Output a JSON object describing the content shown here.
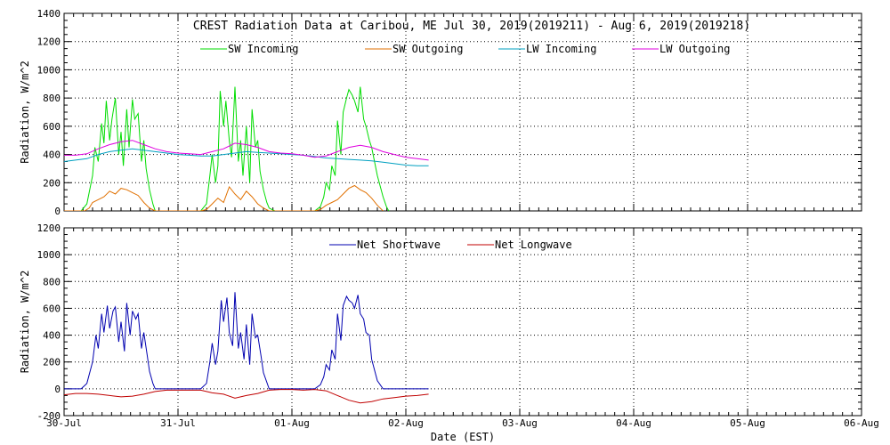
{
  "chart_data": [
    {
      "type": "line",
      "title": "CREST Radiation Data at Caribou, ME   Jul 30, 2019(2019211) - Aug  6, 2019(2019218)",
      "xlabel": "",
      "ylabel": "Radiation, W/m^2",
      "ylim": [
        0,
        1400
      ],
      "yticks": [
        0,
        200,
        400,
        600,
        800,
        1000,
        1200,
        1400
      ],
      "x_unit": "days since 30-Jul 00:00 EST",
      "xlim": [
        0,
        7
      ],
      "grid": true,
      "legend_position": "top",
      "series": [
        {
          "name": "SW Incoming",
          "color": "#00dd00",
          "x": [
            0,
            0.15,
            0.2,
            0.25,
            0.27,
            0.3,
            0.33,
            0.35,
            0.37,
            0.4,
            0.42,
            0.45,
            0.48,
            0.5,
            0.52,
            0.55,
            0.57,
            0.6,
            0.62,
            0.65,
            0.68,
            0.7,
            0.72,
            0.75,
            0.78,
            0.8,
            0.85,
            1.0,
            1.2,
            1.25,
            1.28,
            1.3,
            1.33,
            1.35,
            1.37,
            1.4,
            1.42,
            1.45,
            1.47,
            1.5,
            1.53,
            1.55,
            1.57,
            1.6,
            1.63,
            1.65,
            1.68,
            1.7,
            1.72,
            1.75,
            1.78,
            1.8,
            1.85,
            2.0,
            2.2,
            2.25,
            2.28,
            2.3,
            2.33,
            2.35,
            2.38,
            2.4,
            2.43,
            2.45,
            2.48,
            2.5,
            2.53,
            2.55,
            2.58,
            2.6,
            2.63,
            2.65,
            2.68,
            2.7,
            2.75,
            2.8,
            2.83,
            2.85
          ],
          "values": [
            0,
            0,
            50,
            250,
            450,
            350,
            620,
            480,
            780,
            500,
            650,
            800,
            400,
            560,
            320,
            720,
            450,
            790,
            650,
            690,
            350,
            500,
            300,
            150,
            50,
            0,
            0,
            0,
            0,
            50,
            250,
            400,
            200,
            320,
            850,
            600,
            780,
            500,
            380,
            880,
            350,
            500,
            250,
            600,
            200,
            720,
            450,
            500,
            280,
            150,
            60,
            20,
            0,
            0,
            0,
            30,
            100,
            200,
            150,
            320,
            250,
            640,
            400,
            700,
            800,
            860,
            820,
            780,
            700,
            880,
            650,
            600,
            500,
            450,
            250,
            100,
            30,
            0
          ]
        },
        {
          "name": "SW Outgoing",
          "color": "#e07000",
          "x": [
            0,
            0.18,
            0.22,
            0.25,
            0.3,
            0.35,
            0.4,
            0.45,
            0.5,
            0.55,
            0.6,
            0.65,
            0.7,
            0.75,
            0.8,
            1.2,
            1.25,
            1.3,
            1.35,
            1.4,
            1.45,
            1.5,
            1.55,
            1.6,
            1.65,
            1.7,
            1.75,
            1.8,
            2.2,
            2.25,
            2.3,
            2.35,
            2.4,
            2.45,
            2.5,
            2.55,
            2.6,
            2.65,
            2.7,
            2.75,
            2.8
          ],
          "values": [
            0,
            0,
            20,
            60,
            80,
            100,
            140,
            120,
            160,
            150,
            130,
            110,
            60,
            20,
            0,
            0,
            10,
            50,
            90,
            60,
            170,
            120,
            80,
            140,
            100,
            50,
            20,
            0,
            0,
            10,
            40,
            60,
            80,
            120,
            160,
            180,
            150,
            130,
            90,
            40,
            0
          ]
        },
        {
          "name": "LW Incoming",
          "color": "#00a0c0",
          "x": [
            0,
            0.1,
            0.2,
            0.3,
            0.4,
            0.5,
            0.6,
            0.7,
            0.8,
            0.9,
            1.0,
            1.1,
            1.2,
            1.3,
            1.4,
            1.5,
            1.6,
            1.7,
            1.8,
            1.9,
            2.0,
            2.1,
            2.2,
            2.3,
            2.4,
            2.5,
            2.6,
            2.7,
            2.8,
            2.9,
            3.0,
            3.1,
            3.2
          ],
          "values": [
            350,
            360,
            370,
            400,
            420,
            430,
            440,
            430,
            420,
            410,
            400,
            395,
            390,
            390,
            400,
            410,
            420,
            415,
            410,
            405,
            400,
            395,
            385,
            375,
            370,
            365,
            360,
            355,
            345,
            335,
            325,
            320,
            320
          ]
        },
        {
          "name": "LW Outgoing",
          "color": "#e000e0",
          "x": [
            0,
            0.1,
            0.2,
            0.3,
            0.4,
            0.5,
            0.6,
            0.7,
            0.8,
            0.9,
            1.0,
            1.1,
            1.2,
            1.3,
            1.4,
            1.5,
            1.6,
            1.7,
            1.8,
            1.9,
            2.0,
            2.1,
            2.2,
            2.3,
            2.4,
            2.5,
            2.6,
            2.7,
            2.8,
            2.9,
            3.0,
            3.1,
            3.2
          ],
          "values": [
            395,
            395,
            405,
            440,
            470,
            490,
            500,
            470,
            440,
            420,
            410,
            405,
            400,
            420,
            440,
            480,
            470,
            450,
            420,
            410,
            405,
            395,
            380,
            390,
            420,
            450,
            465,
            450,
            420,
            400,
            380,
            370,
            360
          ]
        }
      ]
    },
    {
      "type": "line",
      "title": "",
      "xlabel": "Date (EST)",
      "ylabel": "Radiation, W/m^2",
      "ylim": [
        -200,
        1200
      ],
      "yticks": [
        -200,
        0,
        200,
        400,
        600,
        800,
        1000,
        1200
      ],
      "x_unit": "days since 30-Jul 00:00 EST",
      "xlim": [
        0,
        7
      ],
      "xtick_labels": [
        "30-Jul",
        "31-Jul",
        "01-Aug",
        "02-Aug",
        "03-Aug",
        "04-Aug",
        "05-Aug",
        "06-Aug"
      ],
      "grid": true,
      "legend_position": "top",
      "series": [
        {
          "name": "Net Shortwave",
          "color": "#0000b0",
          "x": [
            0,
            0.15,
            0.2,
            0.25,
            0.28,
            0.3,
            0.33,
            0.35,
            0.38,
            0.4,
            0.43,
            0.45,
            0.48,
            0.5,
            0.53,
            0.55,
            0.58,
            0.6,
            0.63,
            0.65,
            0.68,
            0.7,
            0.73,
            0.75,
            0.78,
            0.8,
            1.0,
            1.2,
            1.25,
            1.28,
            1.3,
            1.33,
            1.35,
            1.38,
            1.4,
            1.43,
            1.45,
            1.48,
            1.5,
            1.53,
            1.55,
            1.58,
            1.6,
            1.63,
            1.65,
            1.68,
            1.7,
            1.73,
            1.75,
            1.8,
            2.0,
            2.2,
            2.25,
            2.28,
            2.3,
            2.33,
            2.35,
            2.38,
            2.4,
            2.43,
            2.45,
            2.48,
            2.5,
            2.53,
            2.55,
            2.58,
            2.6,
            2.63,
            2.65,
            2.68,
            2.7,
            2.75,
            2.8,
            3.0,
            3.2
          ],
          "values": [
            0,
            0,
            40,
            200,
            400,
            300,
            560,
            420,
            620,
            450,
            580,
            610,
            350,
            500,
            280,
            640,
            400,
            580,
            520,
            560,
            300,
            420,
            250,
            130,
            40,
            0,
            0,
            0,
            40,
            200,
            340,
            180,
            280,
            660,
            500,
            680,
            420,
            320,
            720,
            300,
            420,
            220,
            480,
            180,
            560,
            380,
            400,
            240,
            120,
            0,
            0,
            0,
            30,
            90,
            180,
            140,
            290,
            220,
            560,
            360,
            620,
            690,
            660,
            640,
            600,
            700,
            560,
            520,
            420,
            400,
            220,
            60,
            0,
            0,
            0
          ]
        },
        {
          "name": "Net Longwave",
          "color": "#c00000",
          "x": [
            0,
            0.1,
            0.2,
            0.3,
            0.4,
            0.5,
            0.6,
            0.7,
            0.8,
            0.9,
            1.0,
            1.1,
            1.2,
            1.3,
            1.4,
            1.5,
            1.6,
            1.7,
            1.8,
            1.9,
            2.0,
            2.1,
            2.2,
            2.3,
            2.4,
            2.5,
            2.6,
            2.7,
            2.8,
            2.9,
            3.0,
            3.1,
            3.2
          ],
          "values": [
            -45,
            -35,
            -35,
            -40,
            -50,
            -60,
            -55,
            -40,
            -20,
            -10,
            -10,
            -10,
            -10,
            -30,
            -40,
            -70,
            -50,
            -35,
            -10,
            -5,
            -5,
            -10,
            -5,
            -15,
            -50,
            -85,
            -105,
            -95,
            -75,
            -65,
            -55,
            -50,
            -40
          ]
        }
      ]
    }
  ]
}
